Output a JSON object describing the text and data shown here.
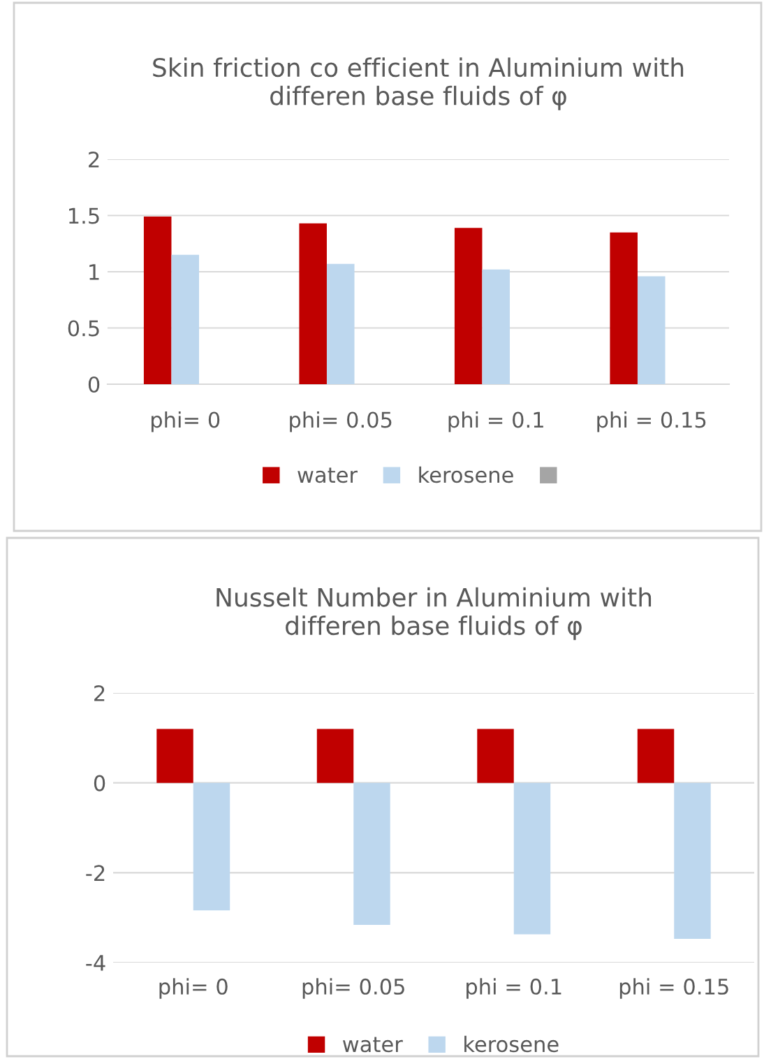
{
  "chart_data": [
    {
      "type": "bar",
      "title": "Skin friction co efficient in Aluminium with\ndifferen base fluids of φ",
      "categories": [
        "phi= 0",
        "phi= 0.05",
        "phi = 0.1",
        "phi = 0.15"
      ],
      "series": [
        {
          "name": "water",
          "color": "#c00000",
          "values": [
            1.49,
            1.43,
            1.39,
            1.35
          ]
        },
        {
          "name": "kerosene",
          "color": "#bdd7ee",
          "values": [
            1.15,
            1.07,
            1.02,
            0.96
          ]
        },
        {
          "color": "#a5a5a5",
          "values": [
            null,
            null,
            null,
            null
          ]
        }
      ],
      "ylim": [
        0,
        2
      ],
      "yticks": [
        0,
        0.5,
        1,
        1.5,
        2
      ],
      "grid": "y",
      "legend": "bottom"
    },
    {
      "type": "bar",
      "title": "Nusselt Number in Aluminium with\ndifferen base fluids of φ",
      "categories": [
        "phi= 0",
        "phi= 0.05",
        "phi = 0.1",
        "phi = 0.15"
      ],
      "series": [
        {
          "name": "water",
          "color": "#c00000",
          "values": [
            1.2,
            1.2,
            1.2,
            1.2
          ]
        },
        {
          "name": "kerosene",
          "color": "#bdd7ee",
          "values": [
            -2.84,
            -3.16,
            -3.37,
            -3.47
          ]
        }
      ],
      "ylim": [
        -4,
        2
      ],
      "yticks": [
        -4,
        -2,
        0,
        2
      ],
      "grid": "y",
      "legend": "bottom"
    }
  ]
}
